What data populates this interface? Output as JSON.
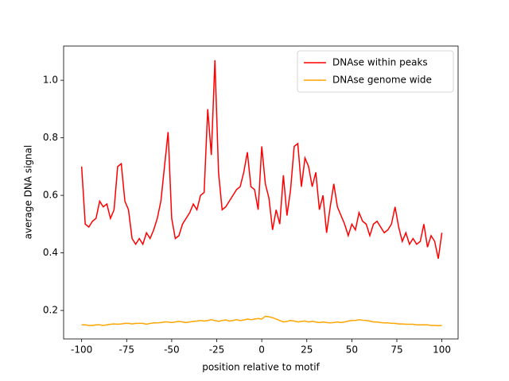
{
  "chart_data": {
    "type": "line",
    "xlabel": "position relative to motif",
    "ylabel": "average DNA signal",
    "x": [
      -100,
      -98,
      -96,
      -94,
      -92,
      -90,
      -88,
      -86,
      -84,
      -82,
      -80,
      -78,
      -76,
      -74,
      -72,
      -70,
      -68,
      -66,
      -64,
      -62,
      -60,
      -58,
      -56,
      -54,
      -52,
      -50,
      -48,
      -46,
      -44,
      -42,
      -40,
      -38,
      -36,
      -34,
      -32,
      -30,
      -28,
      -26,
      -24,
      -22,
      -20,
      -18,
      -16,
      -14,
      -12,
      -10,
      -8,
      -6,
      -4,
      -2,
      0,
      2,
      4,
      6,
      8,
      10,
      12,
      14,
      16,
      18,
      20,
      22,
      24,
      26,
      28,
      30,
      32,
      34,
      36,
      38,
      40,
      42,
      44,
      46,
      48,
      50,
      52,
      54,
      56,
      58,
      60,
      62,
      64,
      66,
      68,
      70,
      72,
      74,
      76,
      78,
      80,
      82,
      84,
      86,
      88,
      90,
      92,
      94,
      96,
      98,
      100
    ],
    "series": [
      {
        "name": "DNAse within peaks",
        "color": "#ff0000",
        "values": [
          0.7,
          0.5,
          0.49,
          0.51,
          0.52,
          0.58,
          0.56,
          0.57,
          0.52,
          0.55,
          0.7,
          0.71,
          0.58,
          0.55,
          0.45,
          0.43,
          0.45,
          0.43,
          0.47,
          0.45,
          0.48,
          0.52,
          0.58,
          0.7,
          0.82,
          0.52,
          0.45,
          0.46,
          0.5,
          0.52,
          0.54,
          0.57,
          0.55,
          0.6,
          0.61,
          0.9,
          0.74,
          1.07,
          0.68,
          0.55,
          0.56,
          0.58,
          0.6,
          0.62,
          0.63,
          0.68,
          0.75,
          0.63,
          0.62,
          0.55,
          0.77,
          0.64,
          0.59,
          0.48,
          0.55,
          0.5,
          0.67,
          0.53,
          0.62,
          0.77,
          0.78,
          0.63,
          0.73,
          0.7,
          0.63,
          0.68,
          0.55,
          0.6,
          0.47,
          0.56,
          0.64,
          0.56,
          0.53,
          0.5,
          0.46,
          0.5,
          0.48,
          0.54,
          0.51,
          0.5,
          0.46,
          0.5,
          0.51,
          0.49,
          0.47,
          0.48,
          0.5,
          0.56,
          0.49,
          0.44,
          0.47,
          0.43,
          0.45,
          0.43,
          0.44,
          0.5,
          0.42,
          0.46,
          0.44,
          0.38,
          0.47
        ]
      },
      {
        "name": "DNAse genome wide",
        "color": "#ffa500",
        "values": [
          0.15,
          0.15,
          0.148,
          0.148,
          0.15,
          0.15,
          0.148,
          0.15,
          0.152,
          0.153,
          0.152,
          0.153,
          0.155,
          0.155,
          0.153,
          0.155,
          0.155,
          0.155,
          0.152,
          0.155,
          0.157,
          0.157,
          0.158,
          0.16,
          0.16,
          0.158,
          0.16,
          0.162,
          0.16,
          0.158,
          0.16,
          0.162,
          0.163,
          0.165,
          0.163,
          0.165,
          0.168,
          0.165,
          0.162,
          0.165,
          0.167,
          0.163,
          0.165,
          0.168,
          0.165,
          0.167,
          0.17,
          0.168,
          0.17,
          0.172,
          0.17,
          0.18,
          0.178,
          0.175,
          0.17,
          0.165,
          0.16,
          0.162,
          0.165,
          0.163,
          0.16,
          0.162,
          0.163,
          0.16,
          0.162,
          0.16,
          0.158,
          0.16,
          0.158,
          0.157,
          0.158,
          0.16,
          0.158,
          0.16,
          0.163,
          0.165,
          0.165,
          0.168,
          0.166,
          0.165,
          0.163,
          0.16,
          0.16,
          0.158,
          0.157,
          0.157,
          0.155,
          0.155,
          0.153,
          0.153,
          0.152,
          0.152,
          0.152,
          0.15,
          0.15,
          0.15,
          0.15,
          0.148,
          0.148,
          0.147,
          0.148
        ]
      }
    ],
    "xlim": [
      -110,
      109
    ],
    "xticks": [
      -100,
      -75,
      -50,
      -25,
      0,
      25,
      50,
      75,
      100
    ],
    "ylim": [
      0.101,
      1.119
    ],
    "yticks": [
      0.2,
      0.4,
      0.6,
      0.8,
      {
        "value": 1,
        "label": "1.0"
      }
    ],
    "legend": "upper right"
  }
}
